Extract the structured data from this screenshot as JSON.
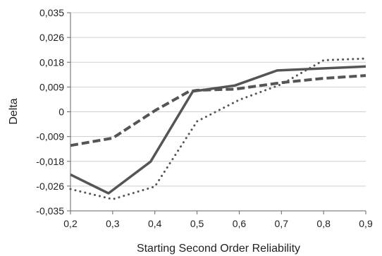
{
  "chart_data": {
    "type": "line",
    "xlabel": "Starting Second Order Reliability",
    "ylabel": "Delta",
    "xlim": [
      0.2,
      0.9
    ],
    "ylim": [
      -0.035,
      0.035
    ],
    "x_ticks": [
      "0,2",
      "0,3",
      "0,4",
      "0,5",
      "0,6",
      "0,7",
      "0,8",
      "0,9"
    ],
    "y_ticks": [
      "0,035",
      "0,026",
      "0,018",
      "0,009",
      "0",
      "-0,009",
      "-0,018",
      "-0,026",
      "-0,035"
    ],
    "grid": "horizontal",
    "legend": "none",
    "series": [
      {
        "style": "solid",
        "color": "#555555",
        "points": [
          {
            "x": 0.2,
            "y": -0.0222
          },
          {
            "x": 0.29,
            "y": -0.0288
          },
          {
            "x": 0.39,
            "y": -0.0176
          },
          {
            "x": 0.49,
            "y": 0.0072
          },
          {
            "x": 0.59,
            "y": 0.0093
          },
          {
            "x": 0.69,
            "y": 0.0146
          },
          {
            "x": 0.9,
            "y": 0.016
          }
        ]
      },
      {
        "style": "dashed",
        "color": "#555555",
        "points": [
          {
            "x": 0.2,
            "y": -0.0119
          },
          {
            "x": 0.3,
            "y": -0.0093
          },
          {
            "x": 0.4,
            "y": 0.0004
          },
          {
            "x": 0.48,
            "y": 0.0071
          },
          {
            "x": 0.5,
            "y": 0.0076
          },
          {
            "x": 0.59,
            "y": 0.008
          },
          {
            "x": 0.7,
            "y": 0.0103
          },
          {
            "x": 0.8,
            "y": 0.0118
          },
          {
            "x": 0.9,
            "y": 0.0128
          }
        ]
      },
      {
        "style": "dotted",
        "color": "#555555",
        "points": [
          {
            "x": 0.2,
            "y": -0.0273
          },
          {
            "x": 0.3,
            "y": -0.0309
          },
          {
            "x": 0.4,
            "y": -0.0264
          },
          {
            "x": 0.5,
            "y": -0.0034
          },
          {
            "x": 0.6,
            "y": 0.0042
          },
          {
            "x": 0.7,
            "y": 0.0097
          },
          {
            "x": 0.8,
            "y": 0.0182
          },
          {
            "x": 0.9,
            "y": 0.0188
          }
        ]
      }
    ]
  }
}
